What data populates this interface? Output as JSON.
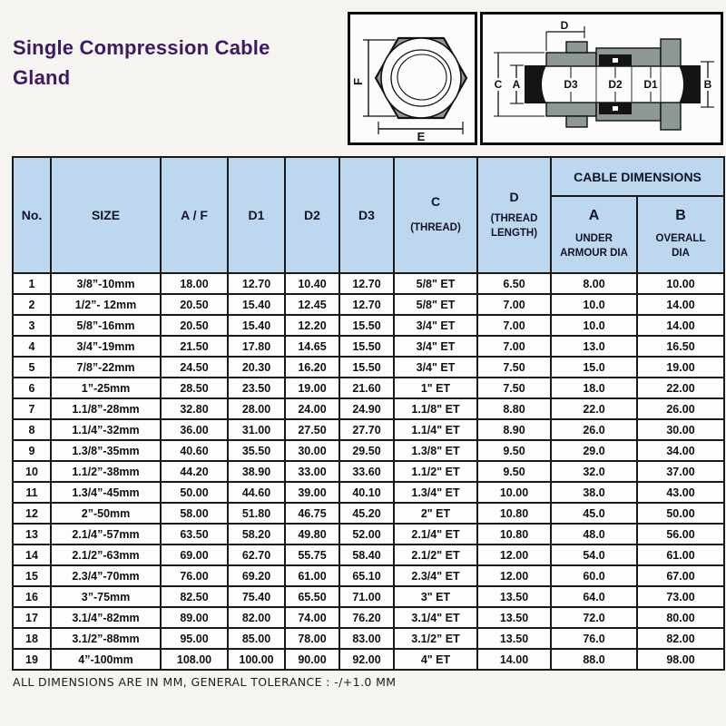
{
  "page": {
    "title": "Single Compression Cable Gland",
    "footer_note": "ALL DIMENSIONS ARE IN MM, GENERAL TOLERANCE : -/+1.0 MM"
  },
  "diagrams": {
    "front_view": {
      "label_f": "F",
      "label_e": "E"
    },
    "section_view": {
      "label_d": "D",
      "label_c": "C",
      "label_a": "A",
      "label_b": "B",
      "label_d1": "D1",
      "label_d2": "D2",
      "label_d3": "D3"
    }
  },
  "table": {
    "headers": {
      "no": "No.",
      "size": "SIZE",
      "af": "A / F",
      "d1": "D1",
      "d2": "D2",
      "d3": "D3",
      "c_label": "C",
      "c_sub": "(THREAD)",
      "d_label": "D",
      "d_sub": "(THREAD\nLENGTH)",
      "cable_dimensions": "CABLE DIMENSIONS",
      "a_label": "A",
      "a_sub": "UNDER\nARMOUR DIA",
      "b_label": "B",
      "b_sub": "OVERALL\nDIA"
    },
    "rows": [
      [
        "1",
        "3/8”-10mm",
        "18.00",
        "12.70",
        "10.40",
        "12.70",
        "5/8\" ET",
        "6.50",
        "8.00",
        "10.00"
      ],
      [
        "2",
        "1/2”- 12mm",
        "20.50",
        "15.40",
        "12.45",
        "12.70",
        "5/8\" ET",
        "7.00",
        "10.0",
        "14.00"
      ],
      [
        "3",
        "5/8”-16mm",
        "20.50",
        "15.40",
        "12.20",
        "15.50",
        "3/4\" ET",
        "7.00",
        "10.0",
        "14.00"
      ],
      [
        "4",
        "3/4”-19mm",
        "21.50",
        "17.80",
        "14.65",
        "15.50",
        "3/4\" ET",
        "7.00",
        "13.0",
        "16.50"
      ],
      [
        "5",
        "7/8”-22mm",
        "24.50",
        "20.30",
        "16.20",
        "15.50",
        "3/4\" ET",
        "7.50",
        "15.0",
        "19.00"
      ],
      [
        "6",
        "1”-25mm",
        "28.50",
        "23.50",
        "19.00",
        "21.60",
        "1\" ET",
        "7.50",
        "18.0",
        "22.00"
      ],
      [
        "7",
        "1.1/8”-28mm",
        "32.80",
        "28.00",
        "24.00",
        "24.90",
        "1.1/8\" ET",
        "8.80",
        "22.0",
        "26.00"
      ],
      [
        "8",
        "1.1/4”-32mm",
        "36.00",
        "31.00",
        "27.50",
        "27.70",
        "1.1/4\" ET",
        "8.90",
        "26.0",
        "30.00"
      ],
      [
        "9",
        "1.3/8”-35mm",
        "40.60",
        "35.50",
        "30.00",
        "29.50",
        "1.3/8\" ET",
        "9.50",
        "29.0",
        "34.00"
      ],
      [
        "10",
        "1.1/2”-38mm",
        "44.20",
        "38.90",
        "33.00",
        "33.60",
        "1.1/2\" ET",
        "9.50",
        "32.0",
        "37.00"
      ],
      [
        "11",
        "1.3/4”-45mm",
        "50.00",
        "44.60",
        "39.00",
        "40.10",
        "1.3/4\" ET",
        "10.00",
        "38.0",
        "43.00"
      ],
      [
        "12",
        "2”-50mm",
        "58.00",
        "51.80",
        "46.75",
        "45.20",
        "2\" ET",
        "10.80",
        "45.0",
        "50.00"
      ],
      [
        "13",
        "2.1/4”-57mm",
        "63.50",
        "58.20",
        "49.80",
        "52.00",
        "2.1/4\" ET",
        "10.80",
        "48.0",
        "56.00"
      ],
      [
        "14",
        "2.1/2”-63mm",
        "69.00",
        "62.70",
        "55.75",
        "58.40",
        "2.1/2\" ET",
        "12.00",
        "54.0",
        "61.00"
      ],
      [
        "15",
        "2.3/4”-70mm",
        "76.00",
        "69.20",
        "61.00",
        "65.10",
        "2.3/4\" ET",
        "12.00",
        "60.0",
        "67.00"
      ],
      [
        "16",
        "3”-75mm",
        "82.50",
        "75.40",
        "65.50",
        "71.00",
        "3\" ET",
        "13.50",
        "64.0",
        "73.00"
      ],
      [
        "17",
        "3.1/4”-82mm",
        "89.00",
        "82.00",
        "74.00",
        "76.20",
        "3.1/4\" ET",
        "13.50",
        "72.0",
        "80.00"
      ],
      [
        "18",
        "3.1/2”-88mm",
        "95.00",
        "85.00",
        "78.00",
        "83.00",
        "3.1/2” ET",
        "13.50",
        "76.0",
        "82.00"
      ],
      [
        "19",
        "4”-100mm",
        "108.00",
        "100.00",
        "90.00",
        "92.00",
        "4\" ET",
        "14.00",
        "88.0",
        "98.00"
      ]
    ]
  }
}
